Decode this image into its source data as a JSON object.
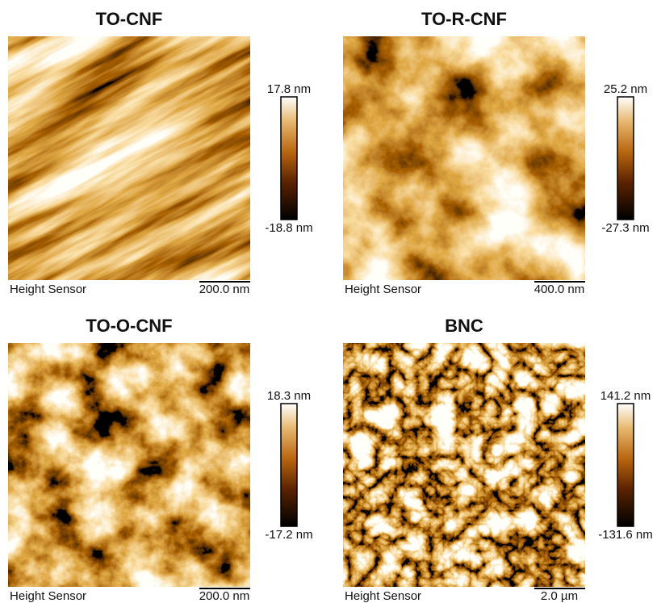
{
  "panels": [
    {
      "title": "TO-CNF",
      "max_label": "17.8 nm",
      "min_label": "-18.8 nm",
      "sensor_label": "Height Sensor",
      "scale_label": "200.0 nm"
    },
    {
      "title": "TO-R-CNF",
      "max_label": "25.2 nm",
      "min_label": "-27.3 nm",
      "sensor_label": "Height Sensor",
      "scale_label": "400.0 nm"
    },
    {
      "title": "TO-O-CNF",
      "max_label": "18.3 nm",
      "min_label": "-17.2 nm",
      "sensor_label": "Height Sensor",
      "scale_label": "200.0 nm"
    },
    {
      "title": "BNC",
      "max_label": "141.2 nm",
      "min_label": "-131.6 nm",
      "sensor_label": "Height Sensor",
      "scale_label": "2.0 µm"
    }
  ]
}
